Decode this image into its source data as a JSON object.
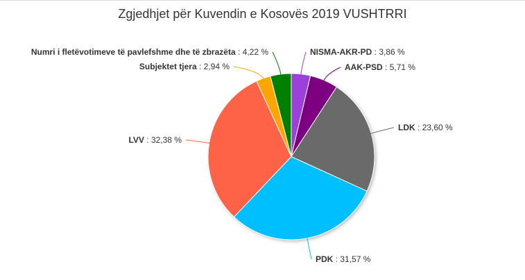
{
  "chart_data": {
    "type": "pie",
    "title": "Zgjedhjet për Kuvendin e Kosovës 2019 VUSHTRRI",
    "slices": [
      {
        "label": "NISMA-AKR-PD",
        "value": 3.86,
        "value_text": "3,86 %",
        "color": "#9b3fdb"
      },
      {
        "label": "AAK-PSD",
        "value": 5.71,
        "value_text": "5,71 %",
        "color": "#7b007f"
      },
      {
        "label": "LDK",
        "value": 23.6,
        "value_text": "23,60 %",
        "color": "#6b6b6b"
      },
      {
        "label": "PDK",
        "value": 31.57,
        "value_text": "31,57 %",
        "color": "#00bfff"
      },
      {
        "label": "LVV",
        "value": 32.38,
        "value_text": "32,38 %",
        "color": "#ff6347"
      },
      {
        "label": "Subjektet tjera",
        "value": 2.94,
        "value_text": "2,94 %",
        "color": "#ffa500"
      },
      {
        "label": "Numri i fletëvotimeve të pavlefshme dhe të zbrazëta",
        "value": 4.22,
        "value_text": "4,22 %",
        "color": "#007f00"
      }
    ]
  }
}
